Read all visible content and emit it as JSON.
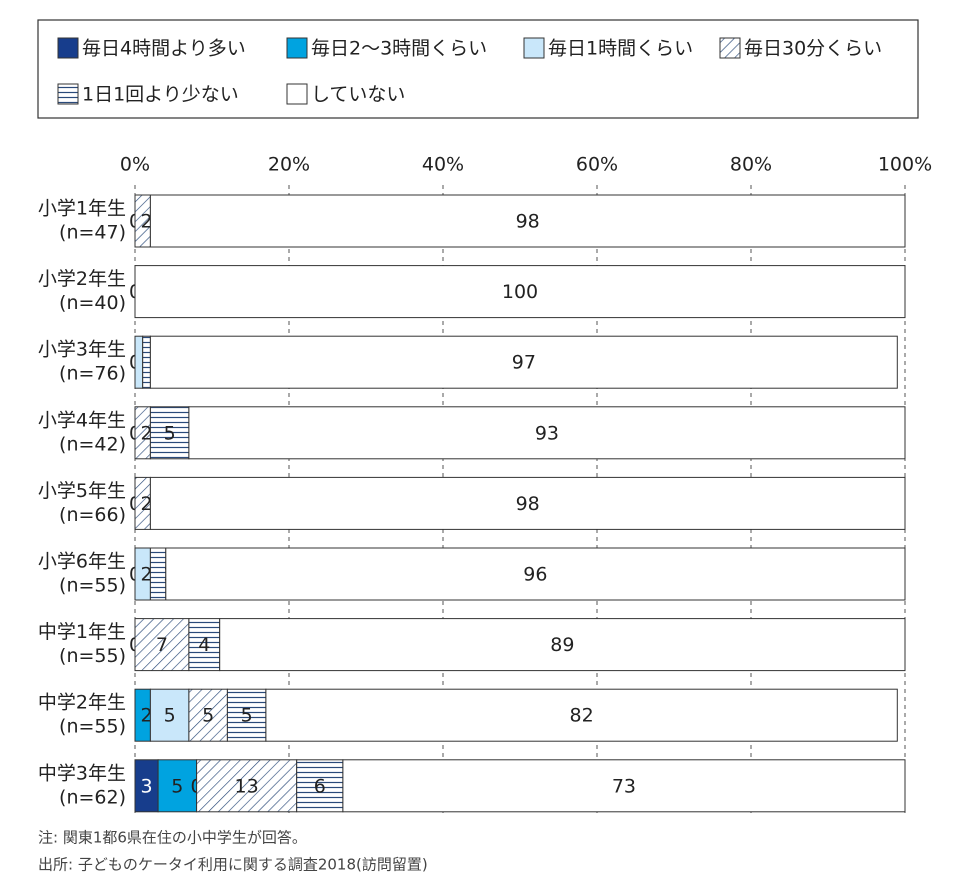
{
  "chart_data": {
    "type": "stacked-bar-horizontal",
    "categories": [
      [
        "小学1年生",
        "(n=47)"
      ],
      [
        "小学2年生",
        "(n=40)"
      ],
      [
        "小学3年生",
        "(n=76)"
      ],
      [
        "小学4年生",
        "(n=42)"
      ],
      [
        "小学5年生",
        "(n=66)"
      ],
      [
        "小学6年生",
        "(n=55)"
      ],
      [
        "中学1年生",
        "(n=55)"
      ],
      [
        "中学2年生",
        "(n=55)"
      ],
      [
        "中学3年生",
        "(n=62)"
      ]
    ],
    "series": [
      {
        "name": "毎日4時間より多い",
        "color": "#173d8c",
        "values": [
          null,
          null,
          null,
          null,
          null,
          null,
          null,
          0,
          3
        ]
      },
      {
        "name": "毎日2～3時間くらい",
        "color": "#00a3e0",
        "values": [
          null,
          null,
          0,
          null,
          null,
          0,
          null,
          2,
          5
        ]
      },
      {
        "name": "毎日1時間くらい",
        "color": "#c9e7fa",
        "values": [
          0,
          null,
          1,
          0,
          0,
          2,
          0,
          5,
          0
        ]
      },
      {
        "name": "毎日30分くらい",
        "color": "#2a4a7a",
        "pattern": "diagonal",
        "values": [
          2,
          0,
          0,
          2,
          2,
          0,
          7,
          5,
          13
        ]
      },
      {
        "name": "1日1回より少ない",
        "color": "#2a4a7a",
        "pattern": "horizontal",
        "values": [
          0,
          null,
          1,
          5,
          0,
          2,
          4,
          5,
          6
        ]
      },
      {
        "name": "していない",
        "color": "#ffffff",
        "values": [
          98,
          100,
          97,
          93,
          98,
          96,
          89,
          82,
          73
        ]
      }
    ],
    "xlim": [
      0,
      100
    ],
    "xticks": [
      {
        "value": 0,
        "label": "0%"
      },
      {
        "value": 20,
        "label": "20%"
      },
      {
        "value": 40,
        "label": "40%"
      },
      {
        "value": 60,
        "label": "60%"
      },
      {
        "value": 80,
        "label": "80%"
      },
      {
        "value": 100,
        "label": "100%"
      }
    ],
    "grid": true,
    "notes": [
      "注: 関東1都6県在住の小中学生が回答。",
      "出所: 子どものケータイ利用に関する調査2018(訪問留置)"
    ]
  }
}
